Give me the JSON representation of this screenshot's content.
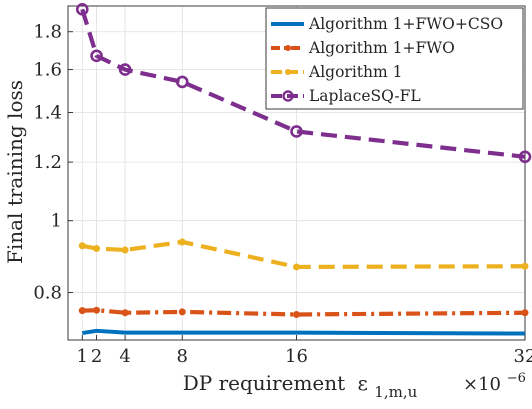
{
  "chart_data": {
    "type": "line",
    "xlabel": "DP requirement",
    "xlabel_symbol": "ε",
    "xlabel_subscript": "1,m,u",
    "ylabel": "Final training loss",
    "x_multiplier_base": "×10",
    "x_multiplier_exp": "−6",
    "yscale": "log",
    "xlim": [
      0,
      32
    ],
    "ylim": [
      0.69,
      1.95
    ],
    "xticks": [
      1,
      2,
      4,
      8,
      16,
      32
    ],
    "yticks": [
      0.8,
      1,
      1.2,
      1.4,
      1.6,
      1.8
    ],
    "ytick_labels": [
      "0.8",
      "1",
      "1.2",
      "1.4",
      "1.6",
      "1.8"
    ],
    "grid": true,
    "legend_position": "top-right",
    "x": [
      1,
      2,
      4,
      8,
      16,
      32
    ],
    "series": [
      {
        "name": "Algorithm 1+FWO+CSO",
        "values": [
          0.705,
          0.71,
          0.706,
          0.706,
          0.706,
          0.704
        ],
        "color": "#0072BD",
        "style": "solid",
        "marker": "none"
      },
      {
        "name": "Algorithm 1+FWO",
        "values": [
          0.756,
          0.757,
          0.751,
          0.753,
          0.747,
          0.751
        ],
        "color": "#D95319",
        "style": "dashdot",
        "marker": "dot"
      },
      {
        "name": "Algorithm 1",
        "values": [
          0.925,
          0.917,
          0.913,
          0.936,
          0.866,
          0.868
        ],
        "color": "#EDB120",
        "style": "dashed",
        "marker": "dot"
      },
      {
        "name": "LaplaceSQ-FL",
        "values": [
          1.93,
          1.67,
          1.6,
          1.54,
          1.32,
          1.22
        ],
        "color": "#7E2F8E",
        "style": "dashed",
        "marker": "circle"
      }
    ]
  }
}
